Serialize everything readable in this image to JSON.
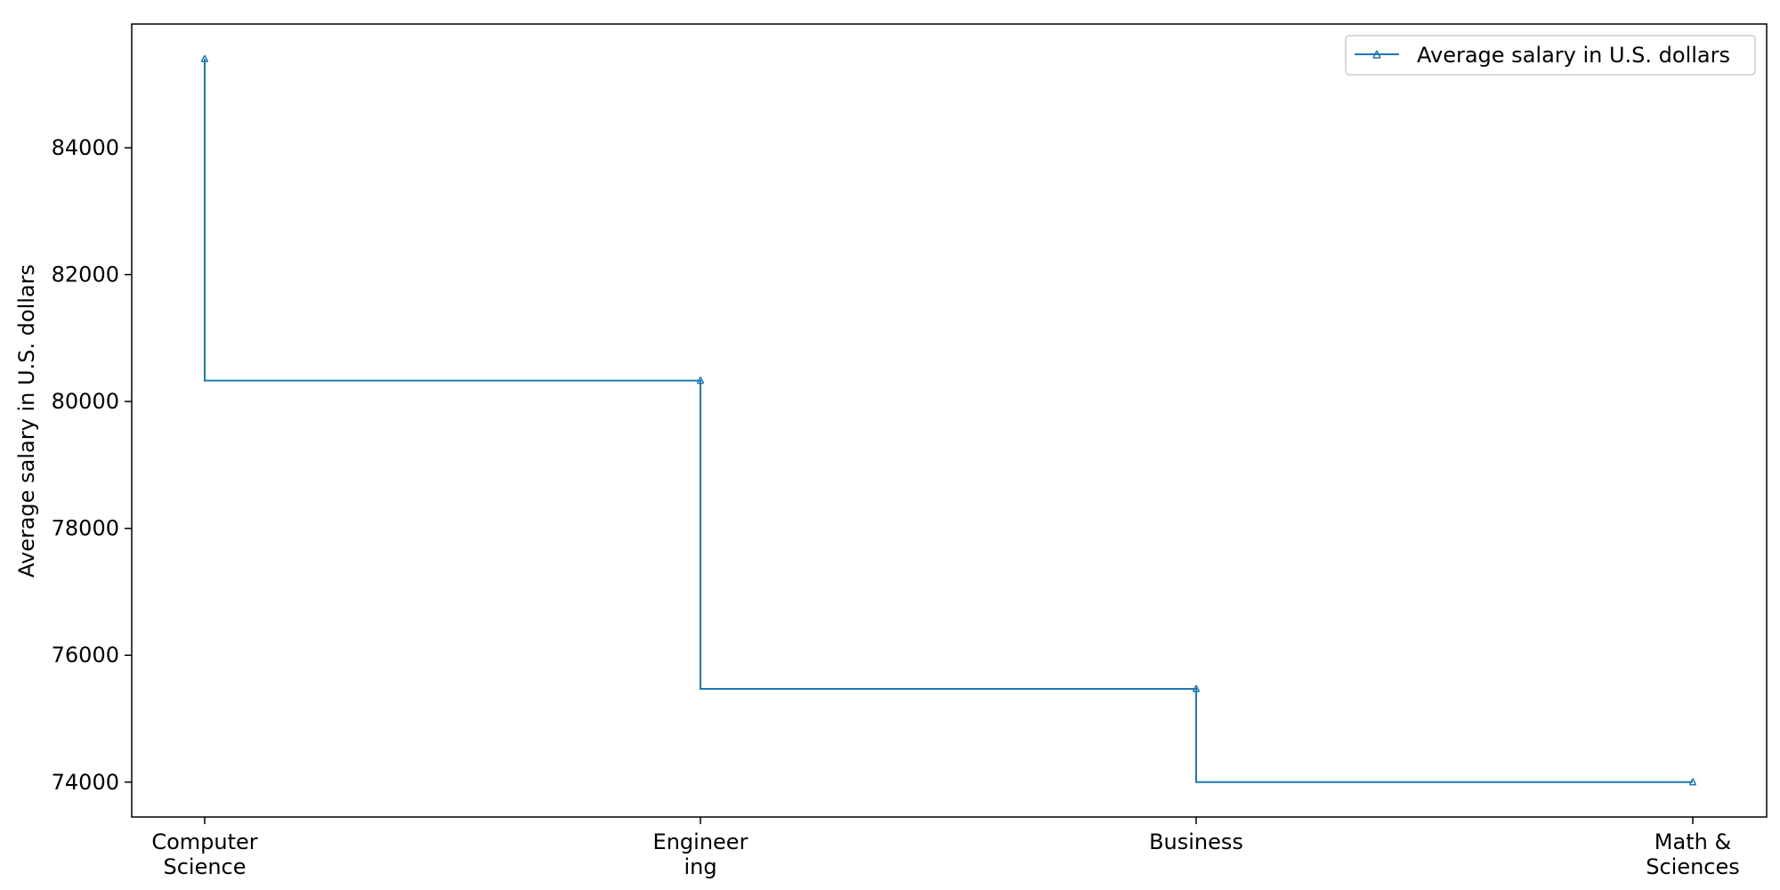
{
  "chart_data": {
    "type": "line",
    "step": "pre",
    "categories": [
      "Computer\nScience",
      "Engineer\ning",
      "Business",
      "Math &\nSciences"
    ],
    "series": [
      {
        "name": "Average salary in U.S. dollars",
        "values": [
          85400,
          80330,
          75470,
          74000
        ],
        "color": "#1f77b4",
        "marker": "tri_up"
      }
    ],
    "title": "",
    "xlabel": "",
    "ylabel": "Average salary in U.S. dollars",
    "ylim": [
      73450,
      85950
    ],
    "yticks": [
      74000,
      76000,
      78000,
      80000,
      82000,
      84000
    ],
    "grid": false,
    "legend_position": "top-right"
  }
}
